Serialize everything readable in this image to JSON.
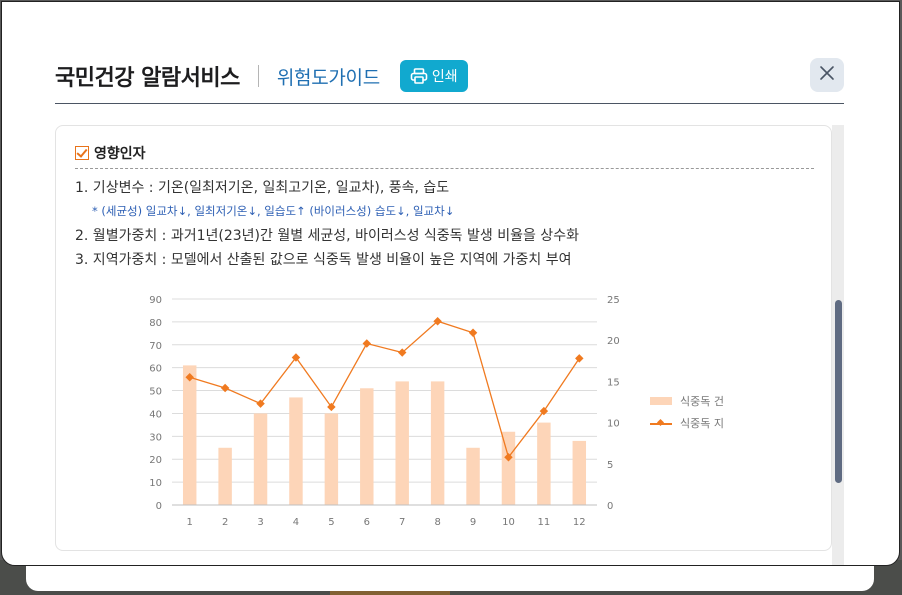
{
  "header": {
    "title": "국민건강 알람서비스",
    "subtitle": "위험도가이드",
    "print_label": "인쇄"
  },
  "section": {
    "heading": "영향인자",
    "items": [
      "1. 기상변수 : 기온(일최저기온, 일최고기온, 일교차), 풍속, 습도",
      "2. 월별가중치 : 과거1년(23년)간 월별 세균성, 바이러스성 식중독 발생 비율을 상수화",
      "3. 지역가중치 : 모델에서 산출된 값으로 식중독 발생 비율이 높은 지역에 가중치 부여"
    ],
    "note": "* (세균성) 일교차↓, 일최저기온↓, 일습도↑ (바이러스성) 습도↓, 일교차↓"
  },
  "colors": {
    "accent": "#11a9cf",
    "subtitle": "#1f6fb2",
    "bar": "#fdd5b8",
    "line": "#f07a20",
    "scrollbar": "#5f6b82"
  },
  "chart_data": {
    "type": "bar",
    "categories": [
      "1",
      "2",
      "3",
      "4",
      "5",
      "6",
      "7",
      "8",
      "9",
      "10",
      "11",
      "12"
    ],
    "series": [
      {
        "name": "식중독 건",
        "type": "bar",
        "axis": "left",
        "values": [
          61,
          25,
          40,
          47,
          40,
          51,
          54,
          54,
          25,
          32,
          36,
          28
        ]
      },
      {
        "name": "식중독 지",
        "type": "line",
        "axis": "right",
        "values": [
          15.5,
          14.2,
          12.3,
          17.9,
          11.9,
          19.6,
          18.5,
          22.3,
          20.9,
          5.8,
          11.4,
          17.8
        ]
      }
    ],
    "ylim_left": [
      0,
      90
    ],
    "yticks_left": [
      "0",
      "10",
      "20",
      "30",
      "40",
      "50",
      "60",
      "70",
      "80",
      "90"
    ],
    "ylim_right": [
      0,
      25
    ],
    "yticks_right": [
      "0",
      "5",
      "10",
      "15",
      "20",
      "25"
    ],
    "grid": true,
    "legend": "right"
  }
}
